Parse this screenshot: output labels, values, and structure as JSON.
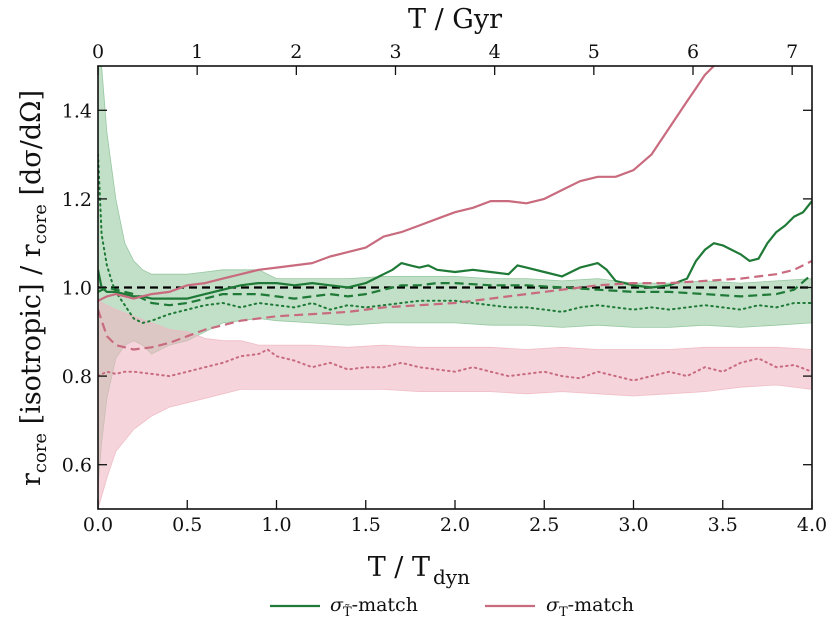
{
  "chart_data": {
    "type": "line",
    "title": "",
    "xlabel": "T / T",
    "xlabel_sub": "dyn",
    "x2label": "T / Gyr",
    "ylabel_parts": [
      "r",
      "core",
      " [isotropic] / r",
      "core",
      " [dσ/dΩ]"
    ],
    "xlim": [
      0.0,
      4.0
    ],
    "ylim": [
      0.5,
      1.5
    ],
    "x2lim": [
      0,
      7.2
    ],
    "xticks": [
      0.0,
      0.5,
      1.0,
      1.5,
      2.0,
      2.5,
      3.0,
      3.5,
      4.0
    ],
    "xtick_labels": [
      "0.0",
      "0.5",
      "1.0",
      "1.5",
      "2.0",
      "2.5",
      "3.0",
      "3.5",
      "4.0"
    ],
    "yticks": [
      0.6,
      0.8,
      1.0,
      1.2,
      1.4
    ],
    "ytick_labels": [
      "0.6",
      "0.8",
      "1.0",
      "1.2",
      "1.4"
    ],
    "x2ticks": [
      0,
      1,
      2,
      3,
      4,
      5,
      6,
      7
    ],
    "x2tick_labels": [
      "0",
      "1",
      "2",
      "3",
      "4",
      "5",
      "6",
      "7"
    ],
    "reference_line": 1.0,
    "colors": {
      "green": "#1e7a36",
      "pink": "#c96b7e",
      "green_band": "#8fc49a",
      "pink_band": "#efb8c3",
      "reference": "#000000"
    },
    "legend": [
      {
        "label": "σ",
        "sub": "T̃",
        "suffix": "-match",
        "color": "#1e7a36"
      },
      {
        "label": "σ",
        "sub": "T",
        "suffix": "-match",
        "color": "#c96b7e"
      }
    ],
    "series": [
      {
        "name": "green-solid",
        "color": "#1e7a36",
        "style": "solid",
        "width": 2.2,
        "x": [
          0.0,
          0.02,
          0.05,
          0.1,
          0.15,
          0.2,
          0.25,
          0.3,
          0.4,
          0.5,
          0.6,
          0.7,
          0.8,
          0.9,
          1.0,
          1.1,
          1.2,
          1.3,
          1.4,
          1.5,
          1.6,
          1.65,
          1.7,
          1.75,
          1.8,
          1.85,
          1.9,
          2.0,
          2.1,
          2.2,
          2.3,
          2.35,
          2.4,
          2.5,
          2.6,
          2.7,
          2.8,
          2.85,
          2.9,
          3.0,
          3.1,
          3.2,
          3.3,
          3.35,
          3.4,
          3.45,
          3.5,
          3.6,
          3.65,
          3.7,
          3.75,
          3.8,
          3.85,
          3.9,
          3.95,
          4.0
        ],
        "y": [
          1.04,
          1.0,
          0.99,
          0.99,
          0.985,
          0.98,
          0.98,
          0.975,
          0.975,
          0.975,
          0.985,
          0.995,
          1.005,
          1.01,
          1.01,
          1.005,
          1.01,
          1.005,
          1.0,
          1.01,
          1.03,
          1.04,
          1.055,
          1.05,
          1.045,
          1.05,
          1.04,
          1.035,
          1.04,
          1.035,
          1.03,
          1.05,
          1.045,
          1.035,
          1.025,
          1.045,
          1.055,
          1.04,
          1.015,
          1.005,
          1.0,
          1.005,
          1.02,
          1.06,
          1.085,
          1.1,
          1.095,
          1.075,
          1.06,
          1.065,
          1.1,
          1.125,
          1.14,
          1.16,
          1.17,
          1.195
        ]
      },
      {
        "name": "green-dashed",
        "color": "#1e7a36",
        "style": "dashed",
        "width": 2.2,
        "x": [
          0.0,
          0.05,
          0.1,
          0.15,
          0.2,
          0.3,
          0.4,
          0.5,
          0.6,
          0.7,
          0.8,
          0.9,
          1.0,
          1.1,
          1.2,
          1.3,
          1.4,
          1.5,
          1.6,
          1.7,
          1.8,
          1.9,
          2.0,
          2.2,
          2.4,
          2.6,
          2.8,
          3.0,
          3.2,
          3.4,
          3.6,
          3.8,
          3.9,
          4.0
        ],
        "y": [
          0.99,
          1.0,
          0.995,
          0.99,
          0.985,
          0.965,
          0.96,
          0.965,
          0.975,
          0.985,
          0.985,
          0.985,
          0.98,
          0.975,
          0.98,
          0.985,
          0.98,
          0.985,
          0.995,
          1.005,
          1.005,
          1.01,
          1.01,
          1.005,
          1.005,
          1.0,
          0.995,
          0.99,
          0.99,
          0.985,
          0.98,
          0.985,
          0.995,
          1.03
        ]
      },
      {
        "name": "green-dotted",
        "color": "#1e7a36",
        "style": "dotted",
        "width": 2.0,
        "x": [
          0.0,
          0.02,
          0.05,
          0.08,
          0.1,
          0.15,
          0.2,
          0.25,
          0.3,
          0.4,
          0.5,
          0.6,
          0.7,
          0.8,
          0.9,
          1.0,
          1.1,
          1.2,
          1.3,
          1.4,
          1.5,
          1.6,
          1.7,
          1.8,
          1.9,
          2.0,
          2.1,
          2.2,
          2.3,
          2.4,
          2.5,
          2.6,
          2.7,
          2.8,
          2.9,
          3.0,
          3.1,
          3.2,
          3.3,
          3.4,
          3.5,
          3.6,
          3.7,
          3.8,
          3.9,
          4.0
        ],
        "y": [
          1.3,
          1.12,
          1.05,
          1.01,
          0.99,
          0.96,
          0.93,
          0.92,
          0.925,
          0.94,
          0.95,
          0.96,
          0.965,
          0.955,
          0.965,
          0.96,
          0.955,
          0.965,
          0.95,
          0.96,
          0.955,
          0.96,
          0.965,
          0.97,
          0.97,
          0.97,
          0.965,
          0.96,
          0.955,
          0.955,
          0.95,
          0.945,
          0.955,
          0.96,
          0.955,
          0.95,
          0.955,
          0.95,
          0.955,
          0.96,
          0.955,
          0.95,
          0.96,
          0.955,
          0.965,
          0.965
        ]
      },
      {
        "name": "pink-solid",
        "color": "#c96b7e",
        "style": "solid",
        "width": 2.2,
        "x": [
          0.0,
          0.05,
          0.1,
          0.2,
          0.3,
          0.4,
          0.5,
          0.6,
          0.7,
          0.8,
          0.9,
          1.0,
          1.1,
          1.2,
          1.3,
          1.4,
          1.5,
          1.6,
          1.7,
          1.8,
          1.9,
          2.0,
          2.1,
          2.2,
          2.3,
          2.4,
          2.5,
          2.6,
          2.7,
          2.8,
          2.9,
          3.0,
          3.1,
          3.2,
          3.3,
          3.35,
          3.4,
          3.45
        ],
        "y": [
          0.97,
          0.98,
          0.985,
          0.975,
          0.985,
          0.99,
          1.005,
          1.01,
          1.02,
          1.03,
          1.04,
          1.045,
          1.05,
          1.055,
          1.07,
          1.08,
          1.09,
          1.115,
          1.125,
          1.14,
          1.155,
          1.17,
          1.18,
          1.195,
          1.195,
          1.19,
          1.2,
          1.22,
          1.24,
          1.25,
          1.25,
          1.265,
          1.3,
          1.36,
          1.42,
          1.45,
          1.48,
          1.5
        ]
      },
      {
        "name": "pink-dashed",
        "color": "#c96b7e",
        "style": "dashed",
        "width": 2.2,
        "x": [
          0.0,
          0.05,
          0.1,
          0.15,
          0.2,
          0.3,
          0.4,
          0.5,
          0.6,
          0.7,
          0.8,
          0.9,
          1.0,
          1.2,
          1.4,
          1.6,
          1.8,
          2.0,
          2.2,
          2.4,
          2.6,
          2.8,
          3.0,
          3.2,
          3.4,
          3.6,
          3.7,
          3.8,
          3.9,
          3.95,
          4.0
        ],
        "y": [
          0.95,
          0.89,
          0.87,
          0.865,
          0.86,
          0.865,
          0.875,
          0.89,
          0.905,
          0.915,
          0.925,
          0.93,
          0.935,
          0.94,
          0.945,
          0.955,
          0.96,
          0.965,
          0.975,
          0.985,
          0.995,
          1.005,
          1.01,
          1.01,
          1.015,
          1.02,
          1.025,
          1.03,
          1.04,
          1.05,
          1.06
        ]
      },
      {
        "name": "pink-dotted",
        "color": "#c96b7e",
        "style": "dotted",
        "width": 2.0,
        "x": [
          0.0,
          0.05,
          0.1,
          0.15,
          0.2,
          0.3,
          0.4,
          0.5,
          0.6,
          0.7,
          0.8,
          0.9,
          0.95,
          1.0,
          1.1,
          1.2,
          1.3,
          1.4,
          1.5,
          1.6,
          1.7,
          1.8,
          1.9,
          2.0,
          2.1,
          2.2,
          2.3,
          2.4,
          2.5,
          2.6,
          2.7,
          2.8,
          2.9,
          3.0,
          3.1,
          3.2,
          3.3,
          3.4,
          3.5,
          3.6,
          3.7,
          3.8,
          3.9,
          4.0
        ],
        "y": [
          0.8,
          0.81,
          0.805,
          0.81,
          0.81,
          0.805,
          0.8,
          0.81,
          0.82,
          0.83,
          0.845,
          0.85,
          0.86,
          0.845,
          0.835,
          0.82,
          0.83,
          0.815,
          0.82,
          0.82,
          0.83,
          0.82,
          0.815,
          0.81,
          0.82,
          0.81,
          0.8,
          0.805,
          0.81,
          0.8,
          0.795,
          0.81,
          0.8,
          0.79,
          0.8,
          0.81,
          0.8,
          0.82,
          0.81,
          0.83,
          0.84,
          0.82,
          0.825,
          0.81
        ]
      }
    ],
    "bands": [
      {
        "name": "green-band",
        "color": "#8fc49a",
        "opacity": 0.55,
        "x": [
          0.0,
          0.02,
          0.05,
          0.1,
          0.15,
          0.2,
          0.25,
          0.3,
          0.4,
          0.5,
          0.6,
          0.7,
          0.8,
          0.9,
          1.0,
          1.2,
          1.4,
          1.6,
          1.8,
          2.0,
          2.2,
          2.4,
          2.6,
          2.8,
          3.0,
          3.2,
          3.4,
          3.6,
          3.8,
          4.0
        ],
        "lower": [
          0.55,
          0.65,
          0.75,
          0.84,
          0.87,
          0.88,
          0.87,
          0.85,
          0.87,
          0.88,
          0.9,
          0.92,
          0.925,
          0.93,
          0.925,
          0.92,
          0.915,
          0.92,
          0.92,
          0.92,
          0.915,
          0.915,
          0.91,
          0.915,
          0.91,
          0.91,
          0.915,
          0.91,
          0.915,
          0.92
        ],
        "upper": [
          1.5,
          1.5,
          1.35,
          1.2,
          1.1,
          1.06,
          1.04,
          1.03,
          1.03,
          1.03,
          1.035,
          1.04,
          1.04,
          1.04,
          1.02,
          1.02,
          1.02,
          1.025,
          1.025,
          1.025,
          1.02,
          1.02,
          1.015,
          1.02,
          1.01,
          1.01,
          1.015,
          1.01,
          1.015,
          1.02
        ]
      },
      {
        "name": "pink-band",
        "color": "#efb8c3",
        "opacity": 0.6,
        "x": [
          0.0,
          0.05,
          0.1,
          0.2,
          0.3,
          0.4,
          0.5,
          0.6,
          0.7,
          0.8,
          0.9,
          1.0,
          1.2,
          1.4,
          1.6,
          1.8,
          2.0,
          2.2,
          2.4,
          2.6,
          2.8,
          3.0,
          3.2,
          3.4,
          3.6,
          3.8,
          4.0
        ],
        "lower": [
          0.5,
          0.57,
          0.63,
          0.68,
          0.71,
          0.73,
          0.74,
          0.75,
          0.76,
          0.77,
          0.77,
          0.77,
          0.77,
          0.77,
          0.77,
          0.765,
          0.765,
          0.765,
          0.76,
          0.765,
          0.76,
          0.755,
          0.76,
          0.765,
          0.775,
          0.78,
          0.77
        ],
        "upper": [
          0.97,
          0.96,
          0.95,
          0.935,
          0.92,
          0.905,
          0.9,
          0.885,
          0.88,
          0.88,
          0.87,
          0.87,
          0.87,
          0.865,
          0.87,
          0.865,
          0.865,
          0.865,
          0.86,
          0.865,
          0.86,
          0.86,
          0.86,
          0.865,
          0.865,
          0.865,
          0.86
        ]
      }
    ]
  }
}
